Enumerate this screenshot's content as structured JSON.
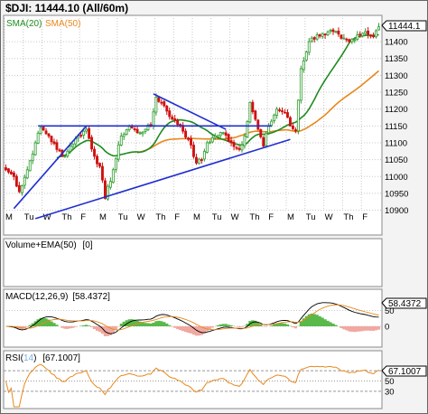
{
  "title": "$DJI: 11444.10 (All/60m)",
  "legend": {
    "sma20": "SMA(20)",
    "sma50": "SMA(50)"
  },
  "colors": {
    "up": "#2e9c2e",
    "down": "#d01010",
    "sma20": "#1f8a1f",
    "sma50": "#e8881c",
    "trendline": "#1f2fd0",
    "macd_hist": "#59b94a",
    "macd_neg": "#f0a8a0",
    "price_tag_bg": "#ffffff",
    "grid": "#c8c8c8"
  },
  "panels": {
    "volume_label": "Volume+EMA(50)",
    "volume_value": "[0]",
    "macd_label": "MACD(12,26,9)",
    "macd_value": "[58.4372]",
    "rsi_label": "RSI(",
    "rsi_period": "14",
    "rsi_label_close": ")",
    "rsi_value": "[67.1007]"
  },
  "chart_data": [
    {
      "type": "candlestick",
      "title": "$DJI: 11444.10 (All/60m)",
      "last_price_tag": "11444.1",
      "y_ticks": [
        10900,
        10950,
        11000,
        11050,
        11100,
        11150,
        11200,
        11250,
        11300,
        11350,
        11400
      ],
      "y_tick_labels": [
        "10900",
        "10950",
        "11000",
        "11050",
        "11100",
        "11150",
        "11200",
        "11250",
        "11300",
        "11350",
        "11400"
      ],
      "ylim": [
        10880,
        11470
      ],
      "x_tick_labels": [
        "M",
        "Tu",
        "W",
        "Th",
        "F",
        "M",
        "Tu",
        "W",
        "Th",
        "F",
        "M",
        "Tu",
        "W",
        "Th",
        "F",
        "M",
        "Tu",
        "W",
        "Th",
        "F"
      ],
      "bars_per_day": 7,
      "n_bars": 140,
      "anchors": [
        [
          0,
          11020
        ],
        [
          3,
          11000
        ],
        [
          5,
          10955
        ],
        [
          8,
          11020
        ],
        [
          11,
          11100
        ],
        [
          13,
          11145
        ],
        [
          16,
          11120
        ],
        [
          19,
          11080
        ],
        [
          22,
          11060
        ],
        [
          24,
          11090
        ],
        [
          27,
          11120
        ],
        [
          30,
          11140
        ],
        [
          33,
          11060
        ],
        [
          35,
          11030
        ],
        [
          37,
          10935
        ],
        [
          40,
          11020
        ],
        [
          43,
          11120
        ],
        [
          46,
          11150
        ],
        [
          49,
          11130
        ],
        [
          52,
          11140
        ],
        [
          54,
          11150
        ],
        [
          56,
          11235
        ],
        [
          59,
          11210
        ],
        [
          62,
          11170
        ],
        [
          65,
          11150
        ],
        [
          68,
          11110
        ],
        [
          71,
          11040
        ],
        [
          73,
          11050
        ],
        [
          75,
          11100
        ],
        [
          78,
          11120
        ],
        [
          81,
          11130
        ],
        [
          84,
          11100
        ],
        [
          87,
          11080
        ],
        [
          89,
          11120
        ],
        [
          91,
          11220
        ],
        [
          94,
          11140
        ],
        [
          96,
          11090
        ],
        [
          98,
          11150
        ],
        [
          101,
          11200
        ],
        [
          104,
          11190
        ],
        [
          106,
          11150
        ],
        [
          108,
          11135
        ],
        [
          110,
          11320
        ],
        [
          113,
          11400
        ],
        [
          116,
          11420
        ],
        [
          119,
          11420
        ],
        [
          122,
          11430
        ],
        [
          125,
          11410
        ],
        [
          128,
          11400
        ],
        [
          131,
          11420
        ],
        [
          134,
          11430
        ],
        [
          137,
          11415
        ],
        [
          139,
          11444.1
        ]
      ],
      "trendlines": [
        {
          "from": [
            3,
            10905
          ],
          "to": [
            30,
            11150
          ]
        },
        {
          "from": [
            12,
            11150
          ],
          "to": [
            99,
            11150
          ]
        },
        {
          "from": [
            11,
            10875
          ],
          "to": [
            106,
            11110
          ]
        },
        {
          "from": [
            55,
            11245
          ],
          "to": [
            82,
            11140
          ]
        }
      ]
    },
    {
      "type": "line",
      "title": "MACD(12,26,9)",
      "value": "58.4372",
      "y_ticks": [
        50,
        0
      ],
      "y_tick_labels": [
        "50",
        "0"
      ],
      "ylim": [
        -60,
        100
      ]
    },
    {
      "type": "line",
      "title": "RSI(14)",
      "value": "67.1007",
      "y_ticks": [
        70,
        50,
        30
      ],
      "y_tick_labels": [
        "70",
        "50",
        "30"
      ],
      "ylim": [
        0,
        100
      ]
    }
  ]
}
